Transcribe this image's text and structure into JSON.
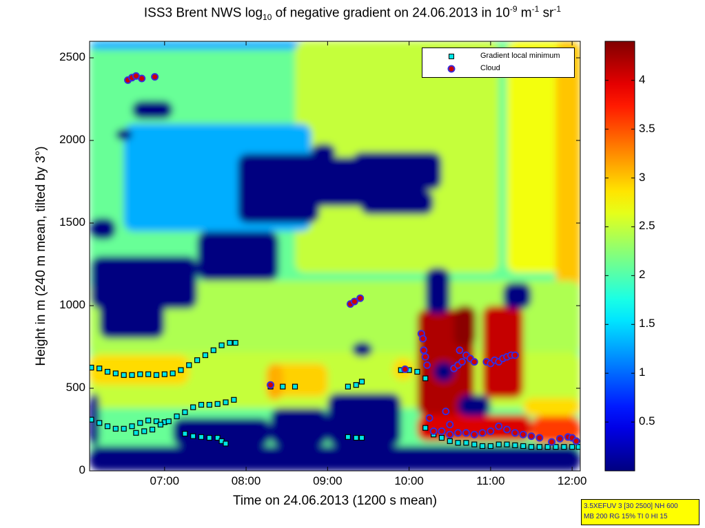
{
  "title": {
    "pre": "ISS3 Brent NWS log",
    "sub1": "10",
    "mid": " of negative gradient on 24.06.2013 in 10",
    "sup1": "-9",
    "unit1": " m",
    "sup2": "-1",
    "unit2": " sr",
    "sup3": "-1"
  },
  "info_box": {
    "line1": "3.5XEFUV 3 [30 2500] NH 600",
    "line2": "MB 200 RG 15% TI 0 HI 15"
  },
  "chart_data": {
    "type": "heatmap",
    "xlabel": "Time on 24.06.2013 (1200 s mean)",
    "ylabel": "Height in m (240 m mean, tilted by 3°)",
    "xlim": [
      6.08,
      12.1
    ],
    "ylim": [
      0,
      2600
    ],
    "x_tick_values": [
      7,
      8,
      9,
      10,
      11,
      12
    ],
    "x_tick_labels": [
      "07:00",
      "08:00",
      "09:00",
      "10:00",
      "11:00",
      "12:00"
    ],
    "y_tick_values": [
      0,
      500,
      1000,
      1500,
      2000,
      2500
    ],
    "y_tick_labels": [
      "0",
      "500",
      "1000",
      "1500",
      "2000",
      "2500"
    ],
    "colorbar": {
      "colormap": "jet",
      "clim": [
        0,
        4.4
      ],
      "tick_values": [
        0.5,
        1,
        1.5,
        2,
        2.5,
        3,
        3.5,
        4
      ],
      "tick_labels": [
        "0.5",
        "1",
        "1.5",
        "2",
        "2.5",
        "3",
        "3.5",
        "4"
      ]
    },
    "legend": {
      "placement": "top-right",
      "entries": [
        {
          "label": "Gradient local minimum",
          "marker": "square",
          "color": "#00e5e5"
        },
        {
          "label": "Cloud",
          "marker": "circle",
          "color": "#cc0000"
        }
      ]
    },
    "field_regions": [
      {
        "x": [
          6.08,
          12.1
        ],
        "y": [
          0,
          2600
        ],
        "value": 2.1
      },
      {
        "x": [
          6.08,
          9.2
        ],
        "y": [
          2550,
          2600
        ],
        "value": 1.3
      },
      {
        "x": [
          8.6,
          11.1
        ],
        "y": [
          1200,
          2600
        ],
        "value": 2.5
      },
      {
        "x": [
          11.2,
          12.1
        ],
        "y": [
          1200,
          2600
        ],
        "value": 2.7
      },
      {
        "x": [
          11.8,
          12.1
        ],
        "y": [
          1000,
          2600
        ],
        "value": 3.0
      },
      {
        "x": [
          6.08,
          12.1
        ],
        "y": [
          700,
          1150
        ],
        "value": 2.4
      },
      {
        "x": [
          6.5,
          8.8
        ],
        "y": [
          1450,
          2100
        ],
        "value": 1.3
      },
      {
        "x": [
          6.08,
          12.1
        ],
        "y": [
          380,
          720
        ],
        "value": 2.5
      },
      {
        "x": [
          6.08,
          7.3
        ],
        "y": [
          520,
          700
        ],
        "value": 2.9
      },
      {
        "x": [
          8.3,
          9.0
        ],
        "y": [
          450,
          650
        ],
        "value": 2.95
      },
      {
        "x": [
          8.25,
          8.45
        ],
        "y": [
          430,
          650
        ],
        "value": 3.1
      },
      {
        "x": [
          9.8,
          10.05
        ],
        "y": [
          550,
          680
        ],
        "value": 2.9
      },
      {
        "x": [
          10.1,
          10.8
        ],
        "y": [
          330,
          980
        ],
        "value": 4.2
      },
      {
        "x": [
          10.55,
          10.82
        ],
        "y": [
          750,
          1000
        ],
        "value": 4.35
      },
      {
        "x": [
          10.9,
          11.4
        ],
        "y": [
          440,
          1000
        ],
        "value": 4.1
      },
      {
        "x": [
          10.1,
          11.5
        ],
        "y": [
          180,
          340
        ],
        "value": 4.0
      },
      {
        "x": [
          11.5,
          12.1
        ],
        "y": [
          170,
          330
        ],
        "value": 3.6
      },
      {
        "x": [
          11.4,
          12.1
        ],
        "y": [
          330,
          440
        ],
        "value": 2.9
      },
      {
        "x": [
          6.08,
          12.1
        ],
        "y": [
          0,
          150
        ],
        "value": 0
      },
      {
        "x": [
          6.08,
          6.4
        ],
        "y": [
          1400,
          1530
        ],
        "value": 0
      },
      {
        "x": [
          6.1,
          7.4
        ],
        "y": [
          980,
          1300
        ],
        "value": 0
      },
      {
        "x": [
          6.2,
          7.0
        ],
        "y": [
          800,
          1030
        ],
        "value": 0
      },
      {
        "x": [
          7.4,
          8.4
        ],
        "y": [
          1150,
          1450
        ],
        "value": 0
      },
      {
        "x": [
          7.9,
          8.9
        ],
        "y": [
          1500,
          1920
        ],
        "value": 0
      },
      {
        "x": [
          8.7,
          9.6
        ],
        "y": [
          1600,
          1900
        ],
        "value": 0
      },
      {
        "x": [
          9.3,
          10.4
        ],
        "y": [
          1700,
          1930
        ],
        "value": 0
      },
      {
        "x": [
          9.4,
          10.3
        ],
        "y": [
          1550,
          1700
        ],
        "value": 0
      },
      {
        "x": [
          8.8,
          9.1
        ],
        "y": [
          1880,
          1980
        ],
        "value": 0
      },
      {
        "x": [
          6.4,
          6.6
        ],
        "y": [
          2000,
          2070
        ],
        "value": 0
      },
      {
        "x": [
          6.6,
          7.1
        ],
        "y": [
          2130,
          2240
        ],
        "value": 0
      },
      {
        "x": [
          6.08,
          6.2
        ],
        "y": [
          150,
          470
        ],
        "value": 0
      },
      {
        "x": [
          7.1,
          8.3
        ],
        "y": [
          150,
          320
        ],
        "value": 0
      },
      {
        "x": [
          8.3,
          9.0
        ],
        "y": [
          150,
          380
        ],
        "value": 0
      },
      {
        "x": [
          9.0,
          9.9
        ],
        "y": [
          150,
          470
        ],
        "value": 0
      },
      {
        "x": [
          10.2,
          10.5
        ],
        "y": [
          950,
          1230
        ],
        "value": 0
      },
      {
        "x": [
          10.6,
          11.0
        ],
        "y": [
          330,
          460
        ],
        "value": 0
      },
      {
        "x": [
          11.15,
          11.5
        ],
        "y": [
          980,
          1140
        ],
        "value": 0
      },
      {
        "x": [
          9.3,
          9.55
        ],
        "y": [
          690,
          780
        ],
        "value": 0
      },
      {
        "x": [
          10.3,
          10.55
        ],
        "y": [
          540,
          660
        ],
        "value": 0
      }
    ],
    "gradient_local_minimum": [
      {
        "x": 6.1,
        "y": 625
      },
      {
        "x": 6.2,
        "y": 620
      },
      {
        "x": 6.3,
        "y": 600
      },
      {
        "x": 6.4,
        "y": 590
      },
      {
        "x": 6.5,
        "y": 580
      },
      {
        "x": 6.6,
        "y": 580
      },
      {
        "x": 6.7,
        "y": 585
      },
      {
        "x": 6.8,
        "y": 585
      },
      {
        "x": 6.9,
        "y": 580
      },
      {
        "x": 7.0,
        "y": 585
      },
      {
        "x": 7.1,
        "y": 590
      },
      {
        "x": 7.2,
        "y": 610
      },
      {
        "x": 7.3,
        "y": 640
      },
      {
        "x": 7.4,
        "y": 670
      },
      {
        "x": 7.5,
        "y": 700
      },
      {
        "x": 7.6,
        "y": 730
      },
      {
        "x": 7.7,
        "y": 760
      },
      {
        "x": 7.8,
        "y": 775
      },
      {
        "x": 7.87,
        "y": 775
      },
      {
        "x": 6.1,
        "y": 310
      },
      {
        "x": 6.2,
        "y": 290
      },
      {
        "x": 6.3,
        "y": 270
      },
      {
        "x": 6.4,
        "y": 255
      },
      {
        "x": 6.5,
        "y": 255
      },
      {
        "x": 6.6,
        "y": 270
      },
      {
        "x": 6.7,
        "y": 290
      },
      {
        "x": 6.8,
        "y": 305
      },
      {
        "x": 6.9,
        "y": 300
      },
      {
        "x": 7.0,
        "y": 295
      },
      {
        "x": 6.65,
        "y": 230
      },
      {
        "x": 6.75,
        "y": 240
      },
      {
        "x": 6.85,
        "y": 250
      },
      {
        "x": 6.95,
        "y": 280
      },
      {
        "x": 7.05,
        "y": 300
      },
      {
        "x": 7.15,
        "y": 330
      },
      {
        "x": 7.25,
        "y": 355
      },
      {
        "x": 7.35,
        "y": 385
      },
      {
        "x": 7.45,
        "y": 400
      },
      {
        "x": 7.55,
        "y": 400
      },
      {
        "x": 7.65,
        "y": 405
      },
      {
        "x": 7.75,
        "y": 415
      },
      {
        "x": 7.85,
        "y": 430
      },
      {
        "x": 7.25,
        "y": 225
      },
      {
        "x": 7.35,
        "y": 210
      },
      {
        "x": 7.45,
        "y": 205
      },
      {
        "x": 7.55,
        "y": 200
      },
      {
        "x": 7.65,
        "y": 200
      },
      {
        "x": 7.7,
        "y": 180
      },
      {
        "x": 7.75,
        "y": 165
      },
      {
        "x": 8.3,
        "y": 510
      },
      {
        "x": 8.45,
        "y": 510
      },
      {
        "x": 8.6,
        "y": 510
      },
      {
        "x": 9.25,
        "y": 510
      },
      {
        "x": 9.35,
        "y": 520
      },
      {
        "x": 9.42,
        "y": 540
      },
      {
        "x": 9.25,
        "y": 205
      },
      {
        "x": 9.35,
        "y": 200
      },
      {
        "x": 9.42,
        "y": 200
      },
      {
        "x": 9.9,
        "y": 610
      },
      {
        "x": 10.0,
        "y": 610
      },
      {
        "x": 10.1,
        "y": 600
      },
      {
        "x": 10.2,
        "y": 560
      },
      {
        "x": 10.2,
        "y": 260
      },
      {
        "x": 10.3,
        "y": 220
      },
      {
        "x": 10.4,
        "y": 200
      },
      {
        "x": 10.5,
        "y": 180
      },
      {
        "x": 10.6,
        "y": 170
      },
      {
        "x": 10.7,
        "y": 170
      },
      {
        "x": 10.8,
        "y": 160
      },
      {
        "x": 10.9,
        "y": 150
      },
      {
        "x": 11.0,
        "y": 150
      },
      {
        "x": 11.1,
        "y": 160
      },
      {
        "x": 11.2,
        "y": 160
      },
      {
        "x": 11.3,
        "y": 155
      },
      {
        "x": 11.4,
        "y": 150
      },
      {
        "x": 11.5,
        "y": 145
      },
      {
        "x": 11.6,
        "y": 145
      },
      {
        "x": 11.7,
        "y": 145
      },
      {
        "x": 11.8,
        "y": 145
      },
      {
        "x": 11.9,
        "y": 145
      },
      {
        "x": 12.0,
        "y": 145
      },
      {
        "x": 12.08,
        "y": 145
      }
    ],
    "cloud": [
      {
        "x": 6.55,
        "y": 2365
      },
      {
        "x": 6.6,
        "y": 2380
      },
      {
        "x": 6.65,
        "y": 2390
      },
      {
        "x": 6.72,
        "y": 2375
      },
      {
        "x": 6.88,
        "y": 2385
      },
      {
        "x": 9.28,
        "y": 1010
      },
      {
        "x": 9.33,
        "y": 1025
      },
      {
        "x": 9.4,
        "y": 1045
      },
      {
        "x": 8.3,
        "y": 520
      },
      {
        "x": 9.95,
        "y": 615
      },
      {
        "x": 10.15,
        "y": 830
      },
      {
        "x": 10.17,
        "y": 800
      },
      {
        "x": 10.18,
        "y": 730
      },
      {
        "x": 10.2,
        "y": 690
      },
      {
        "x": 10.22,
        "y": 640
      },
      {
        "x": 10.25,
        "y": 320
      },
      {
        "x": 10.45,
        "y": 360
      },
      {
        "x": 10.5,
        "y": 280
      },
      {
        "x": 10.55,
        "y": 620
      },
      {
        "x": 10.6,
        "y": 640
      },
      {
        "x": 10.65,
        "y": 660
      },
      {
        "x": 10.62,
        "y": 730
      },
      {
        "x": 10.7,
        "y": 700
      },
      {
        "x": 10.75,
        "y": 680
      },
      {
        "x": 10.8,
        "y": 660
      },
      {
        "x": 10.95,
        "y": 660
      },
      {
        "x": 11.0,
        "y": 650
      },
      {
        "x": 11.05,
        "y": 670
      },
      {
        "x": 11.1,
        "y": 660
      },
      {
        "x": 11.15,
        "y": 680
      },
      {
        "x": 11.2,
        "y": 690
      },
      {
        "x": 11.25,
        "y": 700
      },
      {
        "x": 11.3,
        "y": 700
      },
      {
        "x": 10.3,
        "y": 240
      },
      {
        "x": 10.4,
        "y": 240
      },
      {
        "x": 10.5,
        "y": 220
      },
      {
        "x": 10.6,
        "y": 230
      },
      {
        "x": 10.7,
        "y": 230
      },
      {
        "x": 10.8,
        "y": 220
      },
      {
        "x": 10.9,
        "y": 230
      },
      {
        "x": 11.0,
        "y": 240
      },
      {
        "x": 11.1,
        "y": 270
      },
      {
        "x": 11.2,
        "y": 250
      },
      {
        "x": 11.3,
        "y": 230
      },
      {
        "x": 11.4,
        "y": 220
      },
      {
        "x": 11.5,
        "y": 210
      },
      {
        "x": 11.6,
        "y": 200
      },
      {
        "x": 11.75,
        "y": 175
      },
      {
        "x": 11.85,
        "y": 195
      },
      {
        "x": 11.95,
        "y": 205
      },
      {
        "x": 12.0,
        "y": 200
      },
      {
        "x": 12.05,
        "y": 180
      }
    ]
  }
}
